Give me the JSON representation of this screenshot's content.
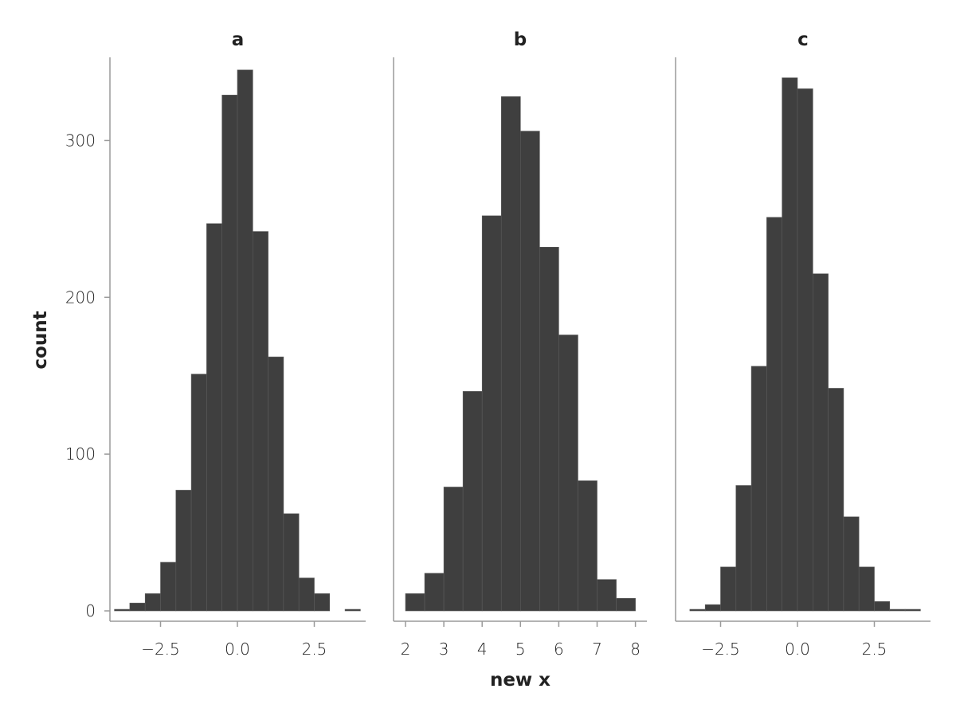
{
  "chart_data": {
    "type": "bar",
    "subtype": "histogram",
    "facet_layout": "3 panels in one row, shared y axis",
    "xlabel": "new x",
    "ylabel": "count",
    "ylim": [
      0,
      350
    ],
    "yticks": [
      0,
      100,
      200,
      300
    ],
    "grid": false,
    "colors": {
      "bar_fill": "#3f3f3f",
      "bar_edge": "#5c5c5c",
      "axis": "#9a9a9a",
      "text": "#222222"
    },
    "panels": [
      {
        "title": "a",
        "xlim": [
          -4.3,
          4.3
        ],
        "xticks": [
          -2.5,
          0.0,
          2.5
        ],
        "xtick_labels": [
          "−2.5",
          "0.0",
          "2.5"
        ],
        "bin_width": 0.5,
        "bins": [
          {
            "x0": -4.0,
            "x1": -3.5,
            "count": 1
          },
          {
            "x0": -3.5,
            "x1": -3.0,
            "count": 5
          },
          {
            "x0": -3.0,
            "x1": -2.5,
            "count": 11
          },
          {
            "x0": -2.5,
            "x1": -2.0,
            "count": 31
          },
          {
            "x0": -2.0,
            "x1": -1.5,
            "count": 77
          },
          {
            "x0": -1.5,
            "x1": -1.0,
            "count": 151
          },
          {
            "x0": -1.0,
            "x1": -0.5,
            "count": 247
          },
          {
            "x0": -0.5,
            "x1": 0.0,
            "count": 329
          },
          {
            "x0": 0.0,
            "x1": 0.5,
            "count": 345
          },
          {
            "x0": 0.5,
            "x1": 1.0,
            "count": 242
          },
          {
            "x0": 1.0,
            "x1": 1.5,
            "count": 162
          },
          {
            "x0": 1.5,
            "x1": 2.0,
            "count": 62
          },
          {
            "x0": 2.0,
            "x1": 2.5,
            "count": 21
          },
          {
            "x0": 2.5,
            "x1": 3.0,
            "count": 11
          },
          {
            "x0": 3.0,
            "x1": 3.5,
            "count": 0
          },
          {
            "x0": 3.5,
            "x1": 4.0,
            "count": 1
          }
        ]
      },
      {
        "title": "b",
        "xlim": [
          1.7,
          8.3
        ],
        "xticks": [
          2,
          3,
          4,
          5,
          6,
          7,
          8
        ],
        "xtick_labels": [
          "2",
          "3",
          "4",
          "5",
          "6",
          "7",
          "8"
        ],
        "bin_width": 0.5,
        "bins": [
          {
            "x0": 2.0,
            "x1": 2.5,
            "count": 11
          },
          {
            "x0": 2.5,
            "x1": 3.0,
            "count": 24
          },
          {
            "x0": 3.0,
            "x1": 3.5,
            "count": 79
          },
          {
            "x0": 3.5,
            "x1": 4.0,
            "count": 140
          },
          {
            "x0": 4.0,
            "x1": 4.5,
            "count": 252
          },
          {
            "x0": 4.5,
            "x1": 5.0,
            "count": 328
          },
          {
            "x0": 5.0,
            "x1": 5.5,
            "count": 306
          },
          {
            "x0": 5.5,
            "x1": 6.0,
            "count": 232
          },
          {
            "x0": 6.0,
            "x1": 6.5,
            "count": 176
          },
          {
            "x0": 6.5,
            "x1": 7.0,
            "count": 83
          },
          {
            "x0": 7.0,
            "x1": 7.5,
            "count": 20
          },
          {
            "x0": 7.5,
            "x1": 8.0,
            "count": 8
          }
        ]
      },
      {
        "title": "c",
        "xlim": [
          -4.3,
          4.3
        ],
        "xticks": [
          -2.5,
          0.0,
          2.5
        ],
        "xtick_labels": [
          "−2.5",
          "0.0",
          "2.5"
        ],
        "bin_width": 0.5,
        "bins": [
          {
            "x0": -3.5,
            "x1": -3.0,
            "count": 1
          },
          {
            "x0": -3.0,
            "x1": -2.5,
            "count": 4
          },
          {
            "x0": -2.5,
            "x1": -2.0,
            "count": 28
          },
          {
            "x0": -2.0,
            "x1": -1.5,
            "count": 80
          },
          {
            "x0": -1.5,
            "x1": -1.0,
            "count": 156
          },
          {
            "x0": -1.0,
            "x1": -0.5,
            "count": 251
          },
          {
            "x0": -0.5,
            "x1": 0.0,
            "count": 340
          },
          {
            "x0": 0.0,
            "x1": 0.5,
            "count": 333
          },
          {
            "x0": 0.5,
            "x1": 1.0,
            "count": 215
          },
          {
            "x0": 1.0,
            "x1": 1.5,
            "count": 142
          },
          {
            "x0": 1.5,
            "x1": 2.0,
            "count": 60
          },
          {
            "x0": 2.0,
            "x1": 2.5,
            "count": 28
          },
          {
            "x0": 2.5,
            "x1": 3.0,
            "count": 6
          },
          {
            "x0": 3.0,
            "x1": 3.5,
            "count": 1
          },
          {
            "x0": 3.5,
            "x1": 4.0,
            "count": 1
          }
        ]
      }
    ]
  }
}
